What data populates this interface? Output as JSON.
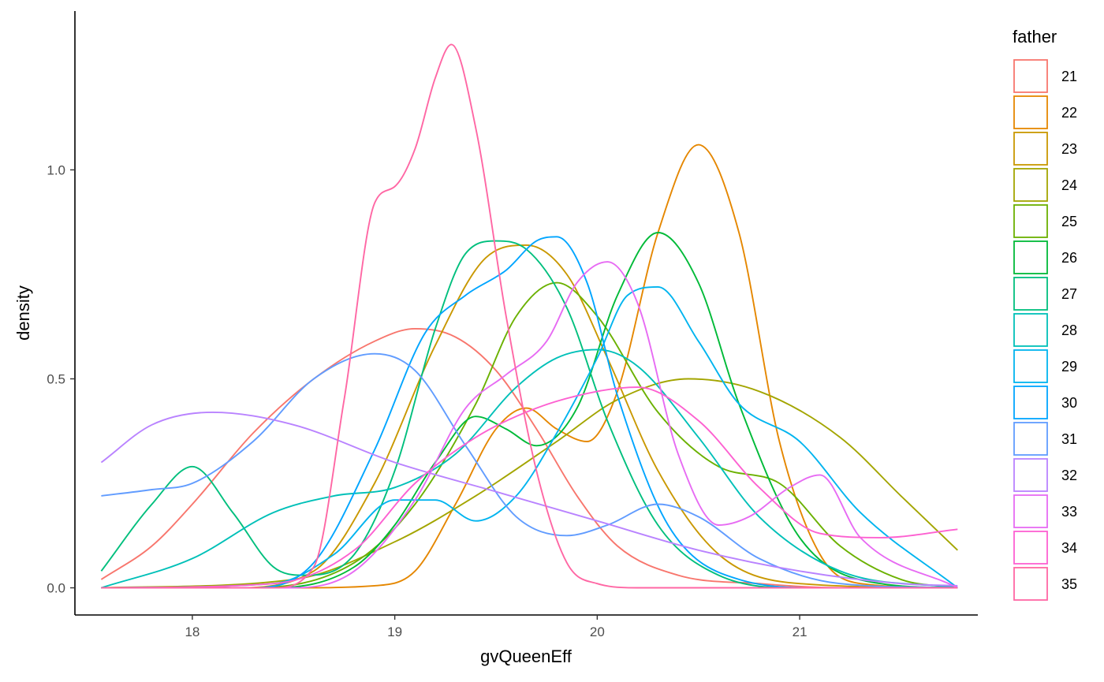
{
  "chart_data": {
    "type": "line",
    "subtype": "density",
    "title": "",
    "xlabel": "gvQueenEff",
    "ylabel": "density",
    "xlim": [
      17.42,
      21.88
    ],
    "ylim": [
      -0.065,
      1.38
    ],
    "x_ticks": [
      18,
      19,
      20,
      21
    ],
    "y_ticks": [
      0.0,
      0.5,
      1.0
    ],
    "x_tick_labels": [
      "18",
      "19",
      "20",
      "21"
    ],
    "y_tick_labels": [
      "0.0",
      "0.5",
      "1.0"
    ],
    "grid": false,
    "legend": {
      "title": "father",
      "position": "right"
    },
    "series": [
      {
        "name": "21",
        "color": "#F8766D",
        "x": [
          17.55,
          17.8,
          18.0,
          18.3,
          18.6,
          18.9,
          19.1,
          19.3,
          19.5,
          19.7,
          19.9,
          20.1,
          20.4,
          20.8,
          21.2,
          21.78
        ],
        "y": [
          0.02,
          0.1,
          0.2,
          0.37,
          0.5,
          0.59,
          0.62,
          0.6,
          0.52,
          0.38,
          0.22,
          0.1,
          0.03,
          0.01,
          0.0,
          0.0
        ]
      },
      {
        "name": "22",
        "color": "#E58700",
        "x": [
          17.55,
          18.5,
          18.9,
          19.1,
          19.3,
          19.5,
          19.65,
          19.8,
          19.95,
          20.1,
          20.3,
          20.5,
          20.7,
          20.9,
          21.1,
          21.3,
          21.78
        ],
        "y": [
          0.0,
          0.0,
          0.005,
          0.04,
          0.2,
          0.38,
          0.43,
          0.38,
          0.35,
          0.47,
          0.85,
          1.06,
          0.85,
          0.35,
          0.08,
          0.01,
          0.0
        ]
      },
      {
        "name": "23",
        "color": "#C99800",
        "x": [
          17.55,
          18.2,
          18.6,
          18.9,
          19.2,
          19.45,
          19.65,
          19.85,
          20.05,
          20.3,
          20.6,
          21.0,
          21.78
        ],
        "y": [
          0.0,
          0.0,
          0.04,
          0.25,
          0.58,
          0.79,
          0.82,
          0.75,
          0.55,
          0.28,
          0.08,
          0.01,
          0.0
        ]
      },
      {
        "name": "24",
        "color": "#A3A500",
        "x": [
          17.55,
          18.5,
          19.0,
          19.4,
          19.8,
          20.1,
          20.45,
          20.8,
          21.2,
          21.5,
          21.78
        ],
        "y": [
          0.0,
          0.02,
          0.11,
          0.22,
          0.35,
          0.45,
          0.5,
          0.47,
          0.36,
          0.22,
          0.09
        ]
      },
      {
        "name": "25",
        "color": "#6BB100",
        "x": [
          17.55,
          18.3,
          18.8,
          19.1,
          19.4,
          19.6,
          19.8,
          20.0,
          20.3,
          20.6,
          20.9,
          21.2,
          21.5,
          21.78
        ],
        "y": [
          0.0,
          0.0,
          0.06,
          0.2,
          0.44,
          0.65,
          0.73,
          0.65,
          0.42,
          0.29,
          0.25,
          0.1,
          0.02,
          0.0
        ]
      },
      {
        "name": "26",
        "color": "#00BA38",
        "x": [
          17.55,
          18.4,
          18.8,
          19.0,
          19.2,
          19.4,
          19.55,
          19.7,
          19.9,
          20.1,
          20.3,
          20.5,
          20.7,
          21.0,
          21.4,
          21.78
        ],
        "y": [
          0.0,
          0.0,
          0.05,
          0.15,
          0.3,
          0.41,
          0.38,
          0.34,
          0.43,
          0.7,
          0.85,
          0.73,
          0.44,
          0.12,
          0.01,
          0.0
        ]
      },
      {
        "name": "27",
        "color": "#00BF7D",
        "x": [
          17.55,
          17.8,
          18.0,
          18.2,
          18.4,
          18.55,
          18.8,
          19.0,
          19.2,
          19.35,
          19.5,
          19.65,
          19.85,
          20.05,
          20.3,
          20.6,
          21.0,
          21.78
        ],
        "y": [
          0.04,
          0.2,
          0.29,
          0.18,
          0.05,
          0.03,
          0.08,
          0.28,
          0.62,
          0.8,
          0.83,
          0.81,
          0.67,
          0.4,
          0.15,
          0.03,
          0.0,
          0.0
        ]
      },
      {
        "name": "28",
        "color": "#00C0B8",
        "x": [
          17.55,
          18.0,
          18.4,
          18.7,
          19.0,
          19.3,
          19.6,
          19.8,
          20.0,
          20.2,
          20.5,
          20.8,
          21.2,
          21.78
        ],
        "y": [
          0.0,
          0.07,
          0.18,
          0.22,
          0.24,
          0.32,
          0.48,
          0.55,
          0.57,
          0.53,
          0.36,
          0.17,
          0.04,
          0.0
        ]
      },
      {
        "name": "29",
        "color": "#00B4EF",
        "x": [
          17.55,
          18.4,
          18.7,
          19.0,
          19.2,
          19.4,
          19.6,
          19.8,
          20.0,
          20.15,
          20.3,
          20.5,
          20.7,
          21.0,
          21.3,
          21.78
        ],
        "y": [
          0.0,
          0.01,
          0.08,
          0.21,
          0.21,
          0.16,
          0.22,
          0.37,
          0.55,
          0.7,
          0.72,
          0.59,
          0.44,
          0.35,
          0.18,
          0.0
        ]
      },
      {
        "name": "30",
        "color": "#00A5FF",
        "x": [
          17.55,
          18.3,
          18.6,
          18.9,
          19.15,
          19.35,
          19.55,
          19.7,
          19.8,
          19.95,
          20.1,
          20.35,
          20.7,
          21.1,
          21.78
        ],
        "y": [
          0.0,
          0.0,
          0.06,
          0.33,
          0.61,
          0.7,
          0.76,
          0.83,
          0.84,
          0.73,
          0.46,
          0.15,
          0.02,
          0.0,
          0.0
        ]
      },
      {
        "name": "31",
        "color": "#619CFF",
        "x": [
          17.55,
          17.8,
          18.0,
          18.3,
          18.6,
          18.9,
          19.1,
          19.35,
          19.6,
          19.85,
          20.05,
          20.3,
          20.5,
          20.8,
          21.2,
          21.78
        ],
        "y": [
          0.22,
          0.235,
          0.25,
          0.35,
          0.5,
          0.56,
          0.52,
          0.34,
          0.17,
          0.125,
          0.15,
          0.2,
          0.17,
          0.07,
          0.01,
          0.0
        ]
      },
      {
        "name": "32",
        "color": "#B983FF",
        "x": [
          17.55,
          17.8,
          18.1,
          18.5,
          19.0,
          19.5,
          20.0,
          20.5,
          21.0,
          21.5,
          21.78
        ],
        "y": [
          0.3,
          0.39,
          0.42,
          0.39,
          0.3,
          0.23,
          0.16,
          0.09,
          0.04,
          0.01,
          0.005
        ]
      },
      {
        "name": "33",
        "color": "#E76BF3",
        "x": [
          17.55,
          18.5,
          18.8,
          19.1,
          19.35,
          19.55,
          19.75,
          19.9,
          20.05,
          20.2,
          20.4,
          20.6,
          20.75,
          20.95,
          21.1,
          21.3,
          21.78
        ],
        "y": [
          0.0,
          0.0,
          0.04,
          0.21,
          0.43,
          0.51,
          0.59,
          0.73,
          0.78,
          0.68,
          0.32,
          0.15,
          0.17,
          0.24,
          0.27,
          0.12,
          0.0
        ]
      },
      {
        "name": "34",
        "color": "#FD61D1",
        "x": [
          17.55,
          18.4,
          18.8,
          19.1,
          19.4,
          19.7,
          20.0,
          20.2,
          20.5,
          20.8,
          21.1,
          21.4,
          21.78
        ],
        "y": [
          0.0,
          0.01,
          0.09,
          0.25,
          0.36,
          0.43,
          0.47,
          0.48,
          0.4,
          0.24,
          0.13,
          0.12,
          0.14
        ]
      },
      {
        "name": "35",
        "color": "#FF67A4",
        "x": [
          17.55,
          18.4,
          18.6,
          18.75,
          18.9,
          19.0,
          19.1,
          19.2,
          19.28,
          19.4,
          19.55,
          19.7,
          19.85,
          20.0,
          20.2,
          21.78
        ],
        "y": [
          0.0,
          0.0,
          0.05,
          0.45,
          0.92,
          0.96,
          1.05,
          1.22,
          1.3,
          1.1,
          0.65,
          0.28,
          0.06,
          0.01,
          0.0,
          0.0
        ]
      }
    ]
  }
}
